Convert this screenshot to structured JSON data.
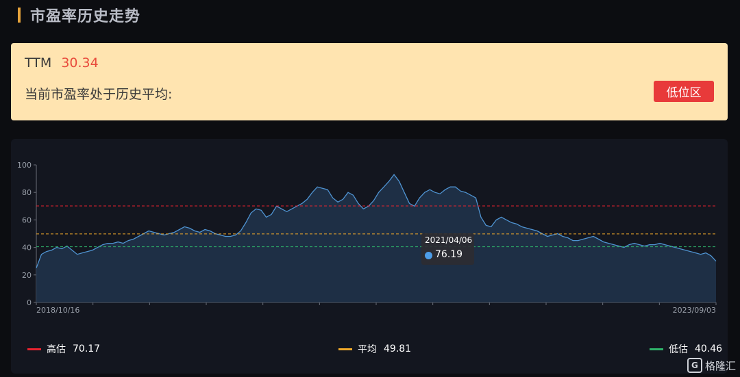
{
  "header": {
    "title": "市盈率历史走势"
  },
  "summary": {
    "ttm_label": "TTM",
    "ttm_value": "30.34",
    "status_text": "当前市盈率处于历史平均:",
    "badge": "低位区"
  },
  "tooltip": {
    "date": "2021/04/06",
    "value": "76.19"
  },
  "legend": [
    {
      "label": "高估",
      "value": "70.17",
      "color": "#e8232f"
    },
    {
      "label": "平均",
      "value": "49.81",
      "color": "#f0a92a"
    },
    {
      "label": "低估",
      "value": "40.46",
      "color": "#2fb36a"
    }
  ],
  "watermark": {
    "text": "格隆汇"
  },
  "chart_data": {
    "type": "area",
    "xlabel": "",
    "ylabel": "",
    "x_tick_labels": [
      "2018/10/16",
      "2023/09/03"
    ],
    "ylim": [
      0,
      100
    ],
    "y_ticks": [
      0,
      20,
      40,
      60,
      80,
      100
    ],
    "grid": false,
    "reference_lines": [
      {
        "name": "高估",
        "value": 70.17,
        "color": "#e8232f"
      },
      {
        "name": "平均",
        "value": 49.81,
        "color": "#f0a92a"
      },
      {
        "name": "低估",
        "value": 40.46,
        "color": "#2fb36a"
      }
    ],
    "series": [
      {
        "line_color": "#4f93d1",
        "fill_color": "#1f3048",
        "values": [
          25,
          35,
          37,
          38,
          40,
          39,
          41,
          38,
          35,
          36,
          37,
          38,
          40,
          42,
          43,
          43,
          44,
          43,
          45,
          46,
          48,
          50,
          52,
          51,
          50,
          49,
          50,
          51,
          53,
          55,
          54,
          52,
          51,
          53,
          52,
          50,
          49,
          48,
          48,
          49,
          52,
          58,
          65,
          68,
          67,
          62,
          64,
          70,
          68,
          66,
          68,
          70,
          72,
          75,
          80,
          84,
          83,
          82,
          76,
          73,
          75,
          80,
          78,
          72,
          68,
          70,
          74,
          80,
          84,
          88,
          93,
          88,
          80,
          72,
          70,
          76,
          80,
          82,
          80,
          79,
          82,
          84,
          84,
          81,
          80,
          78,
          76,
          62,
          56,
          55,
          60,
          62,
          60,
          58,
          57,
          55,
          54,
          53,
          52,
          50,
          48,
          49,
          50,
          48,
          47,
          45,
          45,
          46,
          47,
          48,
          46,
          44,
          43,
          42,
          41,
          40,
          42,
          43,
          42,
          41,
          42,
          42,
          43,
          42,
          41,
          40,
          39,
          38,
          37,
          36,
          35,
          36,
          34,
          30
        ]
      }
    ]
  }
}
